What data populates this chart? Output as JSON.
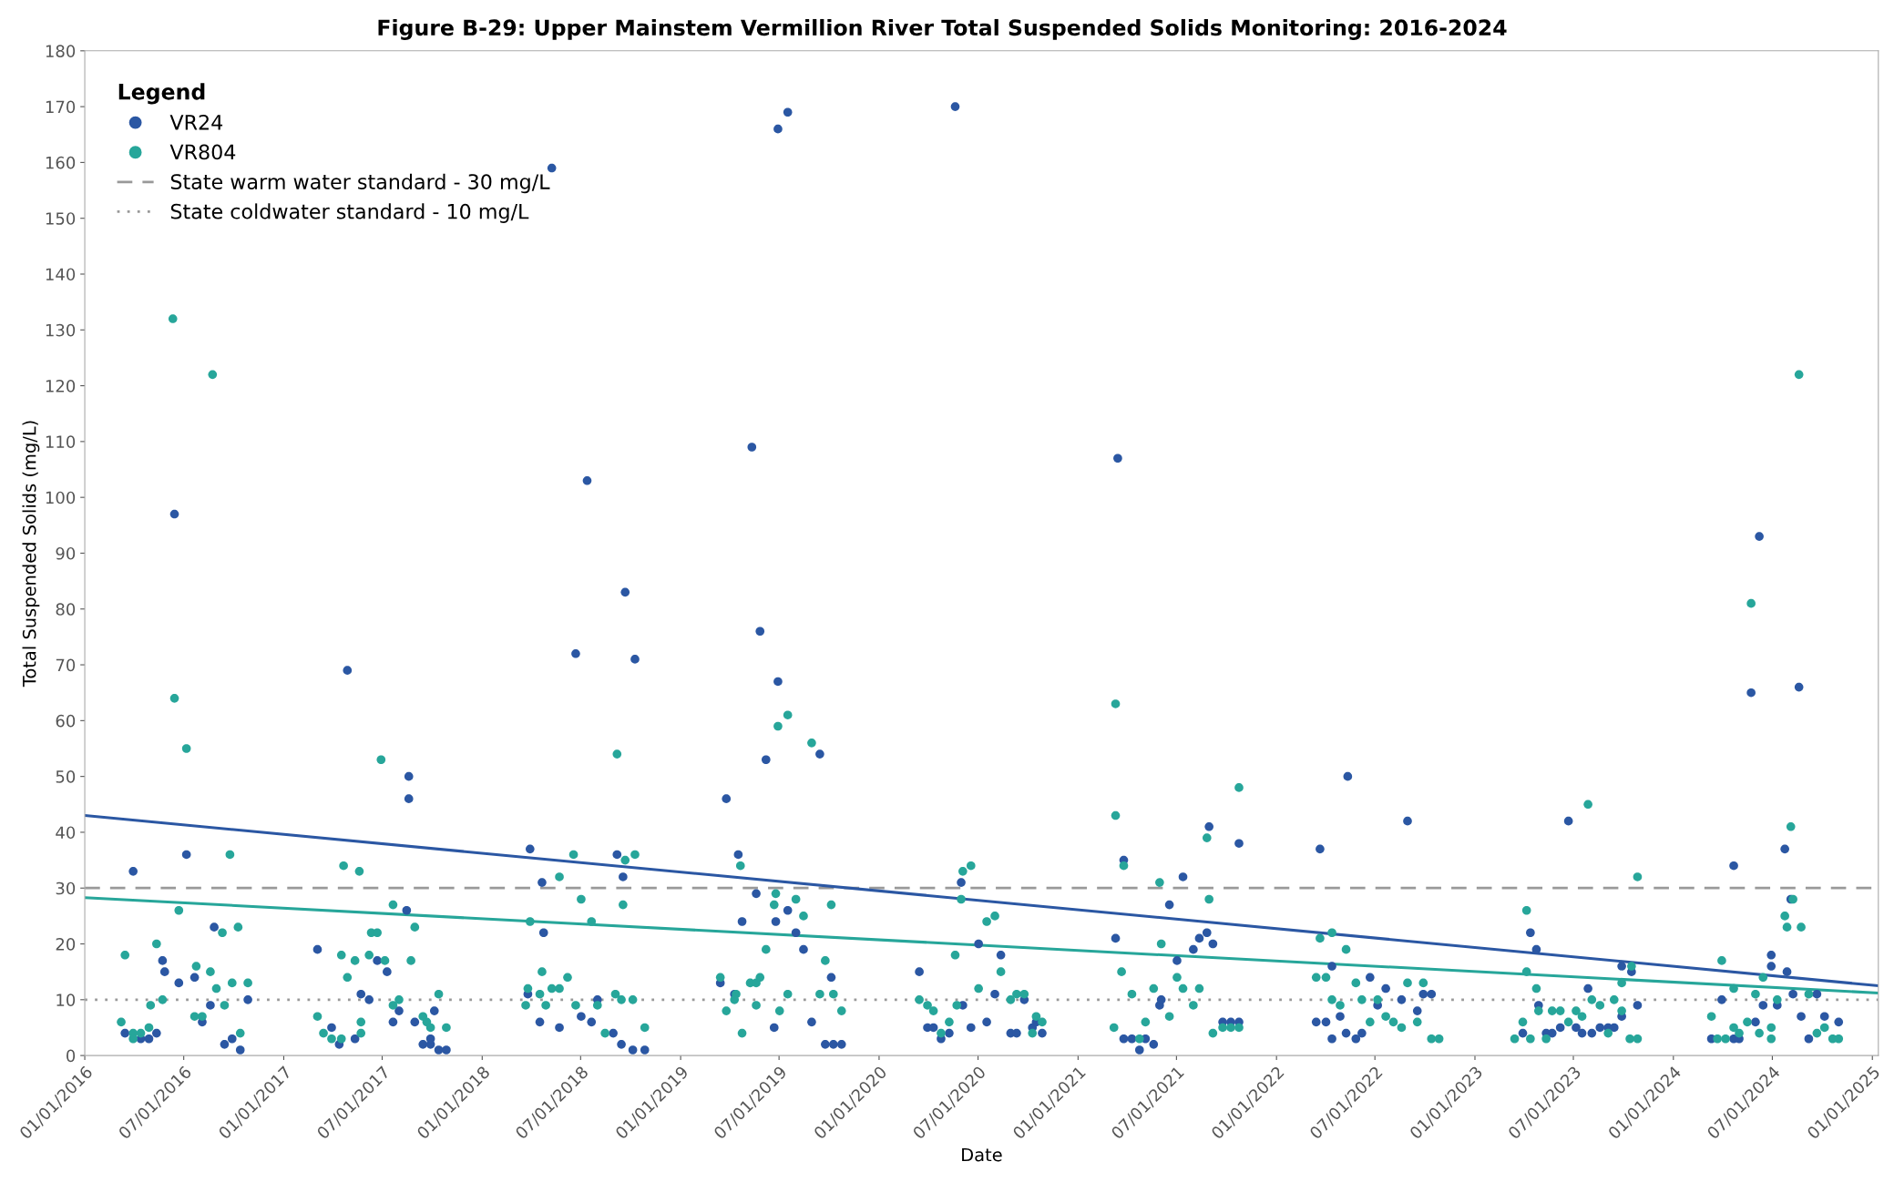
{
  "chart_data": {
    "type": "scatter",
    "title": "Figure B-29: Upper Mainstem Vermillion River Total Suspended Solids Monitoring: 2016-2024",
    "xlabel": "Date",
    "ylabel": "Total Suspended Solids (mg/L)",
    "legend_title": "Legend",
    "legend": "top left",
    "grid": false,
    "marker": "circle",
    "xlim": [
      "2016-01-01",
      "2025-01-12"
    ],
    "ylim": [
      0,
      180
    ],
    "xticks": [
      {
        "value": "2016-01-01",
        "label": "01/01/2016"
      },
      {
        "value": "2016-07-01",
        "label": "07/01/2016"
      },
      {
        "value": "2017-01-01",
        "label": "01/01/2017"
      },
      {
        "value": "2017-07-01",
        "label": "07/01/2017"
      },
      {
        "value": "2018-01-01",
        "label": "01/01/2018"
      },
      {
        "value": "2018-07-01",
        "label": "07/01/2018"
      },
      {
        "value": "2019-01-01",
        "label": "01/01/2019"
      },
      {
        "value": "2019-07-01",
        "label": "07/01/2019"
      },
      {
        "value": "2020-01-01",
        "label": "01/01/2020"
      },
      {
        "value": "2020-07-01",
        "label": "07/01/2020"
      },
      {
        "value": "2021-01-01",
        "label": "01/01/2021"
      },
      {
        "value": "2021-07-01",
        "label": "07/01/2021"
      },
      {
        "value": "2022-01-01",
        "label": "01/01/2022"
      },
      {
        "value": "2022-07-01",
        "label": "07/01/2022"
      },
      {
        "value": "2023-01-01",
        "label": "01/01/2023"
      },
      {
        "value": "2023-07-01",
        "label": "07/01/2023"
      },
      {
        "value": "2024-01-01",
        "label": "01/01/2024"
      },
      {
        "value": "2024-07-01",
        "label": "07/01/2024"
      },
      {
        "value": "2025-01-01",
        "label": "01/01/2025"
      }
    ],
    "yticks": [
      0,
      10,
      20,
      30,
      40,
      50,
      60,
      70,
      80,
      90,
      100,
      110,
      120,
      130,
      140,
      150,
      160,
      170,
      180
    ],
    "ref_lines": [
      {
        "axis": "y",
        "value": 30,
        "label": "State warm water standard - 30 mg/L",
        "color": "#999999",
        "line_style": "dashed"
      },
      {
        "axis": "y",
        "value": 10,
        "label": "State coldwater standard - 10 mg/L",
        "color": "#999999",
        "line_style": "dotted"
      }
    ],
    "series": [
      {
        "name": "VR24",
        "color": "#2b57a3",
        "x": [
          "2016-03-30",
          "2016-07-06",
          "2016-08-26",
          "2016-05-23",
          "2016-05-27",
          "2016-06-22",
          "2016-07-21",
          "2016-10-27",
          "2016-08-19",
          "2016-03-15",
          "2016-04-13",
          "2016-04-28",
          "2016-05-12",
          "2016-08-04",
          "2016-09-14",
          "2016-09-28",
          "2016-10-13",
          "2016-06-14",
          "2017-08-19",
          "2017-08-19",
          "2017-03-04",
          "2017-06-22",
          "2017-07-10",
          "2017-05-23",
          "2017-06-07",
          "2017-08-01",
          "2017-07-21",
          "2017-08-30",
          "2017-10-05",
          "2017-09-14",
          "2017-09-28",
          "2017-09-28",
          "2017-10-13",
          "2017-10-27",
          "2017-03-30",
          "2017-04-13",
          "2017-05-12",
          "2017-08-15",
          "2017-04-28",
          "2018-03-30",
          "2018-04-21",
          "2018-04-24",
          "2018-03-26",
          "2018-04-17",
          "2018-05-23",
          "2018-09-06",
          "2018-09-17",
          "2018-07-02",
          "2018-07-21",
          "2018-08-01",
          "2018-08-30",
          "2018-09-14",
          "2018-10-05",
          "2018-10-27",
          "2018-05-09",
          "2018-06-22",
          "2018-07-13",
          "2018-09-21",
          "2018-10-09",
          "2019-03-26",
          "2019-06-07",
          "2019-09-14",
          "2019-04-17",
          "2019-05-20",
          "2019-07-17",
          "2019-06-25",
          "2019-08-01",
          "2019-08-15",
          "2019-04-24",
          "2019-10-05",
          "2019-08-30",
          "2019-09-24",
          "2019-10-09",
          "2019-10-24",
          "2019-03-15",
          "2019-04-10",
          "2019-06-22",
          "2019-05-12",
          "2019-05-27",
          "2019-06-29",
          "2019-07-17",
          "2019-06-29",
          "2020-03-15",
          "2020-03-30",
          "2020-04-10",
          "2020-04-24",
          "2020-05-09",
          "2020-06-03",
          "2020-06-18",
          "2020-05-31",
          "2020-07-02",
          "2020-07-17",
          "2020-08-01",
          "2020-08-12",
          "2020-09-24",
          "2020-08-30",
          "2020-09-10",
          "2020-10-09",
          "2020-10-16",
          "2020-10-27",
          "2020-05-20",
          "2021-03-11",
          "2021-03-26",
          "2021-03-26",
          "2021-04-10",
          "2021-05-05",
          "2021-04-24",
          "2021-05-20",
          "2021-05-31",
          "2021-06-03",
          "2021-06-18",
          "2021-07-02",
          "2021-07-13",
          "2021-08-01",
          "2021-08-12",
          "2021-08-26",
          "2021-08-30",
          "2021-09-06",
          "2021-09-24",
          "2021-10-09",
          "2021-10-24",
          "2021-10-24",
          "2021-03-15",
          "2022-03-22",
          "2022-04-13",
          "2022-05-12",
          "2022-03-15",
          "2022-04-02",
          "2022-04-13",
          "2022-04-28",
          "2022-05-09",
          "2022-05-27",
          "2022-06-07",
          "2022-06-22",
          "2022-07-06",
          "2022-07-21",
          "2022-08-19",
          "2022-08-30",
          "2022-09-17",
          "2022-09-28",
          "2022-10-13",
          "2023-03-30",
          "2023-04-13",
          "2023-04-24",
          "2023-04-28",
          "2023-05-12",
          "2023-05-23",
          "2023-06-07",
          "2023-06-22",
          "2023-07-06",
          "2023-07-17",
          "2023-07-28",
          "2023-08-04",
          "2023-08-19",
          "2023-09-03",
          "2023-09-14",
          "2023-09-28",
          "2023-09-28",
          "2023-10-16",
          "2023-10-27",
          "2024-03-11",
          "2024-04-21",
          "2024-05-01",
          "2024-03-30",
          "2024-04-21",
          "2024-05-31",
          "2024-06-14",
          "2024-06-29",
          "2024-06-29",
          "2024-07-10",
          "2024-07-24",
          "2024-07-28",
          "2024-08-04",
          "2024-08-08",
          "2024-08-23",
          "2024-09-06",
          "2024-09-21",
          "2024-10-05",
          "2024-10-31",
          "2024-06-07",
          "2024-05-23",
          "2024-08-19"
        ],
        "values": [
          33,
          36,
          23,
          17,
          15,
          13,
          14,
          10,
          9,
          4,
          3,
          3,
          4,
          6,
          2,
          3,
          1,
          97,
          50,
          46,
          19,
          17,
          15,
          11,
          10,
          8,
          6,
          6,
          8,
          2,
          2,
          3,
          1,
          1,
          5,
          2,
          3,
          26,
          69,
          37,
          31,
          22,
          11,
          6,
          5,
          36,
          32,
          7,
          6,
          10,
          4,
          2,
          1,
          1,
          159,
          72,
          103,
          83,
          71,
          46,
          53,
          54,
          36,
          29,
          26,
          24,
          22,
          19,
          24,
          14,
          6,
          2,
          2,
          2,
          13,
          11,
          5,
          109,
          76,
          166,
          169,
          67,
          15,
          5,
          5,
          3,
          4,
          9,
          5,
          31,
          20,
          6,
          11,
          18,
          10,
          4,
          4,
          5,
          6,
          4,
          170,
          21,
          35,
          3,
          3,
          3,
          1,
          2,
          9,
          10,
          27,
          17,
          32,
          19,
          21,
          22,
          41,
          20,
          6,
          6,
          6,
          38,
          107,
          37,
          16,
          50,
          6,
          6,
          3,
          7,
          4,
          3,
          4,
          14,
          9,
          12,
          10,
          42,
          8,
          11,
          11,
          4,
          22,
          19,
          9,
          4,
          4,
          5,
          42,
          5,
          4,
          12,
          4,
          5,
          5,
          5,
          16,
          7,
          15,
          9,
          3,
          3,
          3,
          10,
          34,
          6,
          9,
          18,
          16,
          9,
          37,
          15,
          28,
          11,
          7,
          3,
          11,
          7,
          6,
          93,
          65,
          66
        ]
      },
      {
        "name": "VR804",
        "color": "#27a69a",
        "x": [
          "2016-07-06",
          "2016-09-24",
          "2016-06-22",
          "2016-09-10",
          "2016-10-09",
          "2016-05-12",
          "2016-03-15",
          "2016-07-24",
          "2016-08-19",
          "2016-08-30",
          "2016-09-28",
          "2016-10-27",
          "2016-05-23",
          "2016-05-01",
          "2016-09-14",
          "2016-03-08",
          "2016-03-30",
          "2016-03-30",
          "2016-04-13",
          "2016-04-28",
          "2016-07-21",
          "2016-08-04",
          "2016-10-13",
          "2016-06-11",
          "2016-06-14",
          "2016-08-23",
          "2017-06-29",
          "2017-04-21",
          "2017-05-20",
          "2017-04-17",
          "2017-05-12",
          "2017-04-28",
          "2017-06-07",
          "2017-07-06",
          "2017-06-11",
          "2017-06-22",
          "2017-07-21",
          "2017-08-30",
          "2017-08-23",
          "2017-07-21",
          "2017-08-01",
          "2017-09-14",
          "2017-09-21",
          "2017-09-28",
          "2017-10-13",
          "2017-10-27",
          "2017-03-04",
          "2017-03-15",
          "2017-03-30",
          "2017-04-17",
          "2017-05-23",
          "2017-05-23",
          "2018-03-30",
          "2018-04-21",
          "2018-03-26",
          "2018-04-17",
          "2018-03-22",
          "2018-04-28",
          "2018-09-06",
          "2018-06-18",
          "2018-09-21",
          "2018-10-09",
          "2018-05-23",
          "2018-07-02",
          "2018-09-17",
          "2018-07-21",
          "2018-06-07",
          "2018-05-09",
          "2018-05-23",
          "2018-06-22",
          "2018-08-01",
          "2018-09-03",
          "2018-09-14",
          "2018-10-05",
          "2018-08-15",
          "2018-10-27",
          "2019-06-29",
          "2019-08-30",
          "2019-04-21",
          "2019-06-25",
          "2019-06-22",
          "2019-08-01",
          "2019-08-15",
          "2019-06-07",
          "2019-10-05",
          "2019-09-24",
          "2019-09-14",
          "2019-10-09",
          "2019-10-24",
          "2019-03-15",
          "2019-05-09",
          "2019-05-20",
          "2019-05-27",
          "2019-04-13",
          "2019-04-10",
          "2019-05-20",
          "2019-03-26",
          "2019-04-24",
          "2019-07-02",
          "2019-07-17",
          "2019-07-17",
          "2020-03-15",
          "2020-03-30",
          "2020-04-10",
          "2020-04-24",
          "2020-05-09",
          "2020-05-23",
          "2020-05-20",
          "2020-06-03",
          "2020-06-18",
          "2020-05-31",
          "2020-07-17",
          "2020-08-01",
          "2020-07-02",
          "2020-08-12",
          "2020-08-30",
          "2020-09-10",
          "2020-09-24",
          "2020-10-16",
          "2020-10-09",
          "2020-10-27",
          "2021-03-11",
          "2021-03-26",
          "2021-03-22",
          "2021-04-10",
          "2021-03-08",
          "2021-04-24",
          "2021-05-05",
          "2021-05-20",
          "2021-05-31",
          "2021-06-03",
          "2021-06-18",
          "2021-07-02",
          "2021-07-13",
          "2021-08-01",
          "2021-08-12",
          "2021-08-26",
          "2021-08-30",
          "2021-09-06",
          "2021-09-24",
          "2021-10-09",
          "2021-10-24",
          "2021-10-24",
          "2021-03-11",
          "2022-03-22",
          "2022-04-13",
          "2022-05-09",
          "2022-03-15",
          "2022-04-02",
          "2022-04-13",
          "2022-04-28",
          "2022-05-27",
          "2022-06-07",
          "2022-06-22",
          "2022-07-06",
          "2022-07-21",
          "2022-08-04",
          "2022-08-19",
          "2022-08-30",
          "2022-09-17",
          "2022-09-28",
          "2022-10-13",
          "2022-10-27",
          "2023-03-15",
          "2023-03-30",
          "2023-04-13",
          "2023-04-06",
          "2023-04-06",
          "2023-04-24",
          "2023-04-28",
          "2023-05-12",
          "2023-05-23",
          "2023-06-07",
          "2023-06-22",
          "2023-07-06",
          "2023-07-17",
          "2023-07-28",
          "2023-08-04",
          "2023-08-19",
          "2023-09-03",
          "2023-09-14",
          "2023-09-28",
          "2023-09-28",
          "2023-10-16",
          "2023-10-13",
          "2023-10-27",
          "2023-10-27",
          "2024-03-11",
          "2024-03-22",
          "2024-04-06",
          "2024-04-21",
          "2024-05-01",
          "2024-03-30",
          "2024-04-21",
          "2024-05-16",
          "2024-05-31",
          "2024-06-07",
          "2024-06-14",
          "2024-06-29",
          "2024-06-29",
          "2024-07-10",
          "2024-08-04",
          "2024-08-08",
          "2024-07-24",
          "2024-07-28",
          "2024-08-23",
          "2024-09-06",
          "2024-09-21",
          "2024-10-05",
          "2024-10-20",
          "2024-10-31",
          "2024-05-23",
          "2024-08-19"
        ],
        "values": [
          55,
          36,
          26,
          22,
          23,
          20,
          18,
          16,
          15,
          12,
          13,
          13,
          10,
          9,
          9,
          6,
          4,
          3,
          4,
          5,
          7,
          7,
          4,
          132,
          64,
          122,
          53,
          34,
          33,
          18,
          17,
          14,
          18,
          17,
          22,
          22,
          27,
          23,
          17,
          9,
          10,
          7,
          6,
          5,
          11,
          5,
          7,
          4,
          3,
          3,
          4,
          6,
          24,
          15,
          12,
          11,
          9,
          9,
          54,
          36,
          35,
          36,
          32,
          28,
          27,
          24,
          14,
          12,
          12,
          9,
          9,
          11,
          10,
          10,
          4,
          5,
          59,
          56,
          34,
          29,
          27,
          28,
          25,
          19,
          27,
          17,
          11,
          11,
          8,
          14,
          13,
          13,
          14,
          11,
          10,
          9,
          8,
          4,
          8,
          11,
          61,
          10,
          9,
          8,
          4,
          6,
          9,
          18,
          33,
          34,
          28,
          24,
          25,
          12,
          15,
          10,
          11,
          11,
          7,
          4,
          6,
          43,
          34,
          15,
          11,
          5,
          3,
          6,
          12,
          31,
          20,
          7,
          14,
          12,
          9,
          12,
          39,
          28,
          4,
          5,
          5,
          5,
          48,
          63,
          21,
          22,
          19,
          14,
          14,
          10,
          9,
          13,
          10,
          6,
          10,
          7,
          6,
          5,
          13,
          6,
          13,
          3,
          3,
          3,
          6,
          3,
          26,
          15,
          12,
          8,
          3,
          8,
          8,
          6,
          8,
          7,
          45,
          10,
          9,
          4,
          10,
          13,
          8,
          16,
          3,
          3,
          32,
          7,
          3,
          3,
          5,
          4,
          17,
          12,
          6,
          11,
          4,
          14,
          5,
          3,
          10,
          41,
          28,
          25,
          23,
          23,
          11,
          4,
          5,
          3,
          3,
          81,
          122
        ]
      },
      {
        "type": "line",
        "marker": "none",
        "color": "#2b57a3",
        "x": [
          "2016-01-01",
          "2025-01-12"
        ],
        "values": [
          43,
          12.5
        ]
      },
      {
        "type": "line",
        "marker": "none",
        "color": "#27a69a",
        "x": [
          "2016-01-01",
          "2025-01-12"
        ],
        "values": [
          28.3,
          11.2
        ]
      }
    ]
  }
}
